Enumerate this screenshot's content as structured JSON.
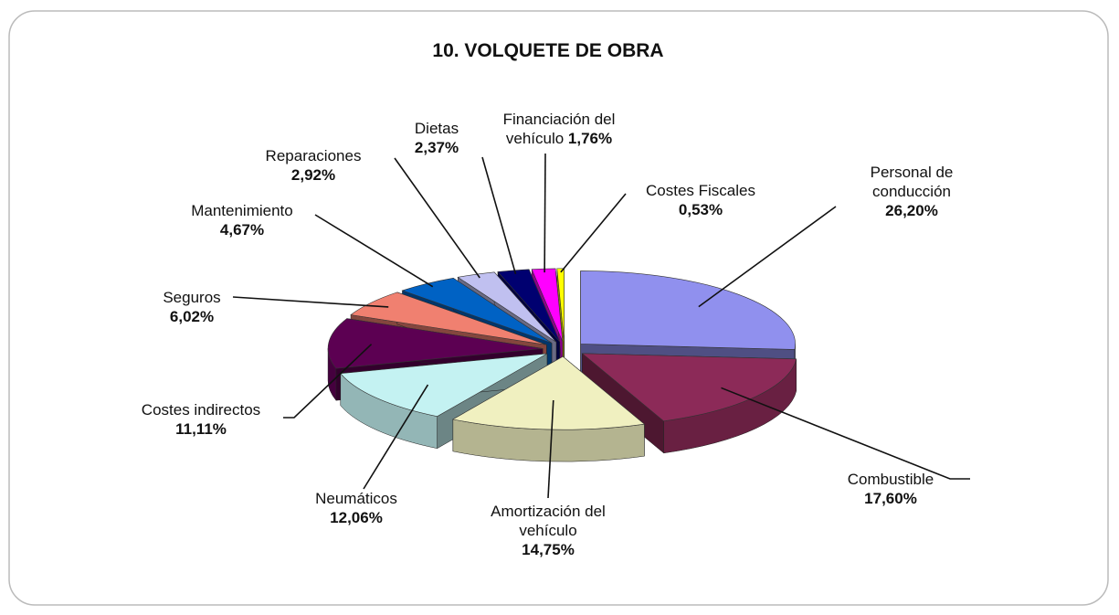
{
  "chart_data": {
    "type": "pie",
    "title": "10. VOLQUETE DE OBRA",
    "categories": [
      "Personal de conducción",
      "Combustible",
      "Amortización del vehículo",
      "Neumáticos",
      "Costes indirectos",
      "Seguros",
      "Mantenimiento",
      "Reparaciones",
      "Dietas",
      "Financiación del vehículo",
      "Costes Fiscales"
    ],
    "values": [
      26.2,
      17.6,
      14.75,
      12.06,
      11.11,
      6.02,
      4.67,
      2.92,
      2.37,
      1.76,
      0.53
    ],
    "value_labels": [
      "26,20%",
      "17,60%",
      "14,75%",
      "12,06%",
      "11,11%",
      "6,02%",
      "4,67%",
      "2,92%",
      "2,37%",
      "1,76%",
      "0,53%"
    ],
    "colors": [
      "#9090ee",
      "#8c2a58",
      "#f0f0c0",
      "#c4f2f2",
      "#5c0052",
      "#f08070",
      "#0062c4",
      "#c0c0f0",
      "#000070",
      "#ff00ff",
      "#ffff00"
    ]
  }
}
